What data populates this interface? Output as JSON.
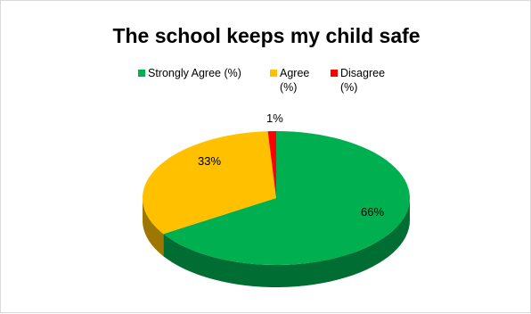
{
  "chart_data": {
    "type": "pie",
    "title": "The school keeps my child safe",
    "style": "3d",
    "legend_position": "top",
    "series": [
      {
        "name": "Strongly Agree (%)",
        "value": 66,
        "label": "66%",
        "color": "#00b050"
      },
      {
        "name": "Agree (%)",
        "value": 33,
        "label": "33%",
        "color": "#ffc000"
      },
      {
        "name": "Disagree (%)",
        "value": 1,
        "label": "1%",
        "color": "#ff0000"
      }
    ]
  }
}
